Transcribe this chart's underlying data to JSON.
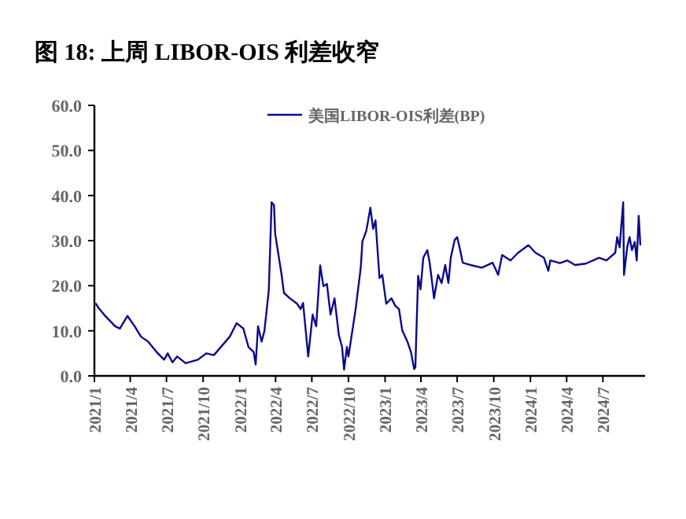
{
  "chart_data": {
    "type": "line",
    "title": "图 18: 上周 LIBOR-OIS 利差收窄",
    "legend": "top right",
    "grid": false,
    "marker": "none",
    "line_style": "solid",
    "xlim": [
      "2021-01-01",
      "2024-10-15"
    ],
    "xticks": [
      {
        "value": "2021-01-01",
        "label": "2021/1"
      },
      {
        "value": "2021-04-01",
        "label": "2021/4"
      },
      {
        "value": "2021-07-01",
        "label": "2021/7"
      },
      {
        "value": "2021-10-01",
        "label": "2021/10"
      },
      {
        "value": "2022-01-01",
        "label": "2022/1"
      },
      {
        "value": "2022-04-01",
        "label": "2022/4"
      },
      {
        "value": "2022-07-01",
        "label": "2022/7"
      },
      {
        "value": "2022-10-01",
        "label": "2022/10"
      },
      {
        "value": "2023-01-01",
        "label": "2023/1"
      },
      {
        "value": "2023-04-01",
        "label": "2023/4"
      },
      {
        "value": "2023-07-01",
        "label": "2023/7"
      },
      {
        "value": "2023-10-01",
        "label": "2023/10"
      },
      {
        "value": "2024-01-01",
        "label": "2024/1"
      },
      {
        "value": "2024-04-01",
        "label": "2024/4"
      },
      {
        "value": "2024-07-01",
        "label": "2024/7"
      }
    ],
    "ylim": [
      0,
      60
    ],
    "yticks": [
      {
        "value": 0,
        "label": "0.0"
      },
      {
        "value": 10,
        "label": "10.0"
      },
      {
        "value": 20,
        "label": "20.0"
      },
      {
        "value": 30,
        "label": "30.0"
      },
      {
        "value": 40,
        "label": "40.0"
      },
      {
        "value": 50,
        "label": "50.0"
      },
      {
        "value": 60,
        "label": "60.0"
      }
    ],
    "series": [
      {
        "name": "美国LIBOR-OIS利差(BP)",
        "color": "#0a0a8c",
        "x": [
          "2021-01-05",
          "2021-01-12",
          "2021-01-26",
          "2021-02-22",
          "2021-03-06",
          "2021-03-25",
          "2021-04-12",
          "2021-04-28",
          "2021-05-16",
          "2021-06-06",
          "2021-06-25",
          "2021-07-04",
          "2021-07-16",
          "2021-07-28",
          "2021-08-18",
          "2021-09-18",
          "2021-10-09",
          "2021-10-28",
          "2021-12-07",
          "2021-12-24",
          "2022-01-10",
          "2022-01-23",
          "2022-02-05",
          "2022-02-10",
          "2022-02-16",
          "2022-02-25",
          "2022-03-04",
          "2022-03-15",
          "2022-03-22",
          "2022-03-28",
          "2022-03-31",
          "2022-04-16",
          "2022-04-22",
          "2022-05-07",
          "2022-05-25",
          "2022-06-03",
          "2022-06-09",
          "2022-06-22",
          "2022-07-03",
          "2022-07-12",
          "2022-07-22",
          "2022-07-30",
          "2022-08-08",
          "2022-08-17",
          "2022-08-27",
          "2022-09-07",
          "2022-09-15",
          "2022-09-20",
          "2022-09-27",
          "2022-10-01",
          "2022-10-19",
          "2022-11-01",
          "2022-11-05",
          "2022-11-15",
          "2022-11-25",
          "2022-12-02",
          "2022-12-08",
          "2022-12-18",
          "2022-12-25",
          "2023-01-04",
          "2023-01-17",
          "2023-01-27",
          "2023-02-05",
          "2023-02-13",
          "2023-02-26",
          "2023-03-07",
          "2023-03-15",
          "2023-03-18",
          "2023-03-25",
          "2023-03-31",
          "2023-04-07",
          "2023-04-17",
          "2023-04-23",
          "2023-05-04",
          "2023-05-14",
          "2023-05-23",
          "2023-06-01",
          "2023-06-09",
          "2023-06-15",
          "2023-06-25",
          "2023-07-01",
          "2023-07-07",
          "2023-07-15",
          "2023-08-03",
          "2023-09-01",
          "2023-09-28",
          "2023-10-12",
          "2023-10-22",
          "2023-11-12",
          "2023-12-01",
          "2023-12-27",
          "2024-01-14",
          "2024-02-04",
          "2024-02-15",
          "2024-02-20",
          "2024-03-15",
          "2024-04-03",
          "2024-04-22",
          "2024-05-19",
          "2024-06-21",
          "2024-07-10",
          "2024-08-01",
          "2024-08-06",
          "2024-08-12",
          "2024-08-21",
          "2024-08-23",
          "2024-08-31",
          "2024-09-06",
          "2024-09-12",
          "2024-09-19",
          "2024-09-24",
          "2024-09-29",
          "2024-10-03"
        ],
        "values": [
          16,
          15,
          13.5,
          11,
          10.5,
          13.3,
          11,
          8.7,
          7.6,
          5.3,
          3.6,
          5,
          3,
          4.3,
          2.8,
          3.6,
          5,
          4.6,
          8.7,
          11.7,
          10.5,
          6.4,
          5.3,
          2.5,
          11,
          7.6,
          10,
          19,
          38.5,
          37.9,
          31.5,
          22.5,
          18.4,
          17.2,
          16,
          14.8,
          16.2,
          4.3,
          13.6,
          11,
          24.5,
          19.9,
          20.4,
          13.6,
          17.2,
          9,
          6.4,
          1.4,
          6.4,
          4.3,
          14.8,
          24.1,
          29.8,
          32.2,
          37.3,
          32.6,
          34.5,
          21.7,
          22.4,
          16,
          17.2,
          15.5,
          14.8,
          10.1,
          7.6,
          5.3,
          1.5,
          1.9,
          22.2,
          19.2,
          26.2,
          27.9,
          25.1,
          17.2,
          22.4,
          20.6,
          24.6,
          20.6,
          26.2,
          30.2,
          30.8,
          28.5,
          25.1,
          24.6,
          24,
          25.1,
          22.4,
          26.8,
          25.6,
          27.3,
          29,
          27.3,
          26.2,
          23.3,
          25.6,
          25,
          25.6,
          24.6,
          24.9,
          26.2,
          25.6,
          27.3,
          30.8,
          28.5,
          38.5,
          22.4,
          28.5,
          30.8,
          27.9,
          29.7,
          25.6,
          35.5,
          29.1
        ]
      }
    ]
  }
}
